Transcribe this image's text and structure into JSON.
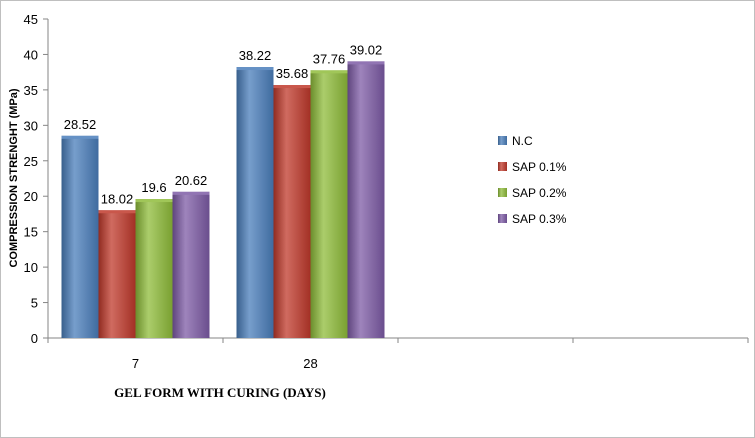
{
  "chart_data": {
    "type": "bar",
    "categories": [
      "7",
      "28"
    ],
    "series": [
      {
        "name": "N.C",
        "values": [
          28.52,
          38.22
        ],
        "labels": [
          "28.52",
          "38.22"
        ],
        "color": "#4a7ebb"
      },
      {
        "name": "SAP 0.1%",
        "values": [
          18.02,
          35.68
        ],
        "labels": [
          "18.02",
          "35.68"
        ],
        "color": "#c0392b"
      },
      {
        "name": "SAP 0.2%",
        "values": [
          19.6,
          37.76
        ],
        "labels": [
          "19.6",
          "37.76"
        ],
        "color": "#8fbc3a"
      },
      {
        "name": "SAP 0.3%",
        "values": [
          20.62,
          39.02
        ],
        "labels": [
          "20.62",
          "39.02"
        ],
        "color": "#7d5ba6"
      }
    ],
    "xlabel": "GEL FORM  WITH CURING  (DAYS)",
    "ylabel": "COMPRESSION STRENGHT (MPa)",
    "ylim": [
      0,
      45
    ],
    "yticks": [
      "0",
      "5",
      "10",
      "15",
      "20",
      "25",
      "30",
      "35",
      "40",
      "45"
    ],
    "grid": false,
    "legend": "right"
  }
}
